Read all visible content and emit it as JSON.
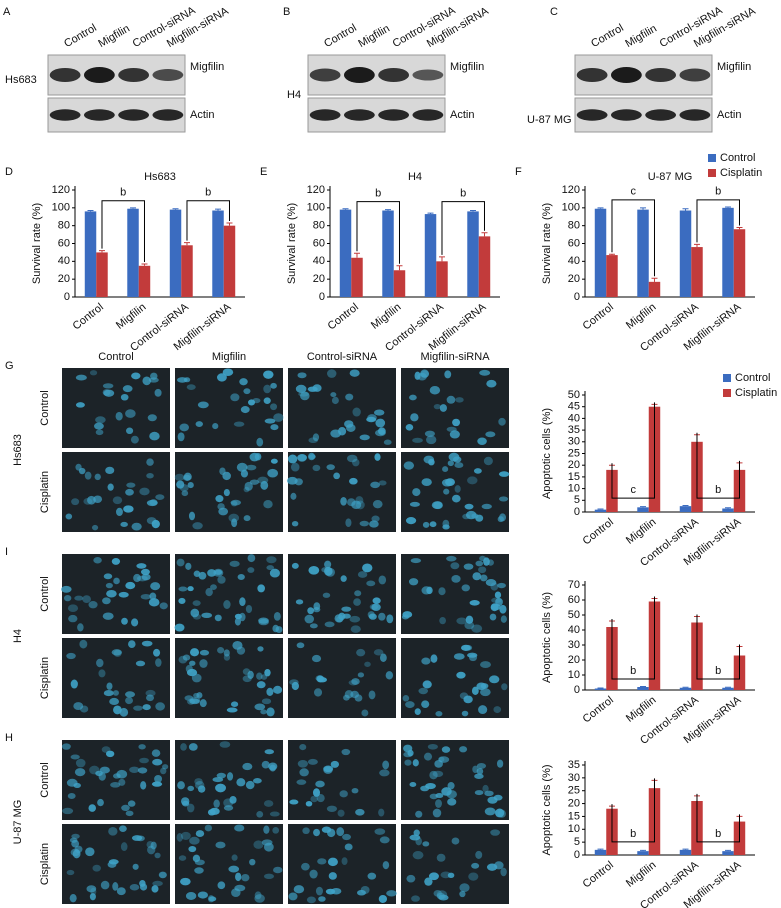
{
  "blots": [
    {
      "label": "A",
      "cell_line": "Hs683",
      "lanes": [
        "Control",
        "Migfilin",
        "Control-siRNA",
        "Migfilin-siRNA"
      ],
      "proteins": [
        "Migfilin",
        "Actin"
      ]
    },
    {
      "label": "B",
      "cell_line": "H4",
      "lanes": [
        "Control",
        "Migfilin",
        "Control-siRNA",
        "Migfilin-siRNA"
      ],
      "proteins": [
        "Migfilin",
        "Actin"
      ]
    },
    {
      "label": "C",
      "cell_line": "U-87 MG",
      "lanes": [
        "Control",
        "Migfilin",
        "Control-siRNA",
        "Migfilin-siRNA"
      ],
      "proteins": [
        "Migfilin",
        "Actin"
      ]
    }
  ],
  "micrographs": {
    "columns": [
      "Control",
      "Migfilin",
      "Control-siRNA",
      "Migfilin-siRNA"
    ],
    "rows": [
      "Control",
      "Cisplatin"
    ],
    "groups": [
      {
        "label": "G",
        "cell_line": "Hs683"
      },
      {
        "label": "I",
        "cell_line": "H4"
      },
      {
        "label": "H",
        "cell_line": "U-87 MG"
      }
    ]
  },
  "chart_data": [
    {
      "type": "bar",
      "panel": "D",
      "title": "Hs683",
      "y_label": "Survival rate (%)",
      "categories": [
        "Control",
        "Migfilin",
        "Control-siRNA",
        "Migfilin-siRNA"
      ],
      "series": [
        {
          "name": "Control",
          "color": "#3b6cc0",
          "values": [
            96,
            99,
            98,
            97
          ],
          "errors": [
            1,
            1,
            1,
            1.5
          ]
        },
        {
          "name": "Cisplatin",
          "color": "#c23b3b",
          "values": [
            50,
            35,
            58,
            80
          ],
          "errors": [
            2,
            2,
            3,
            3
          ]
        }
      ],
      "ylim": [
        0,
        120
      ],
      "yticks": [
        0,
        20,
        40,
        60,
        80,
        100,
        120
      ],
      "annotations": [
        "b",
        "b"
      ],
      "legend": false
    },
    {
      "type": "bar",
      "panel": "E",
      "title": "H4",
      "y_label": "Survival rate (%)",
      "categories": [
        "Control",
        "Migfilin",
        "Control-siRNA",
        "Migfilin-siRNA"
      ],
      "series": [
        {
          "name": "Control",
          "color": "#3b6cc0",
          "values": [
            98,
            97,
            93,
            96
          ],
          "errors": [
            1,
            1,
            1,
            1
          ]
        },
        {
          "name": "Cisplatin",
          "color": "#c23b3b",
          "values": [
            44,
            30,
            40,
            68
          ],
          "errors": [
            5,
            5,
            5,
            4
          ]
        }
      ],
      "ylim": [
        0,
        120
      ],
      "yticks": [
        0,
        20,
        40,
        60,
        80,
        100,
        120
      ],
      "annotations": [
        "b",
        "b"
      ],
      "legend": false
    },
    {
      "type": "bar",
      "panel": "F",
      "title": "U-87 MG",
      "y_label": "Survival rate (%)",
      "categories": [
        "Control",
        "Migfilin",
        "Control-siRNA",
        "Migfilin-siRNA"
      ],
      "series": [
        {
          "name": "Control",
          "color": "#3b6cc0",
          "values": [
            99,
            98,
            97,
            100
          ],
          "errors": [
            1,
            2,
            2,
            1
          ]
        },
        {
          "name": "Cisplatin",
          "color": "#c23b3b",
          "values": [
            47,
            17,
            56,
            76
          ],
          "errors": [
            1,
            4,
            3,
            2
          ]
        }
      ],
      "ylim": [
        0,
        120
      ],
      "yticks": [
        0,
        20,
        40,
        60,
        80,
        100,
        120
      ],
      "annotations": [
        "c",
        "b"
      ],
      "legend": true
    },
    {
      "type": "bar",
      "y_label": "Apoptotic cells (%)",
      "categories": [
        "Control",
        "Migfilin",
        "Control-siRNA",
        "Migfilin-siRNA"
      ],
      "series": [
        {
          "name": "Control",
          "color": "#3b6cc0",
          "values": [
            1,
            2,
            2.5,
            1.5
          ],
          "errors": [
            0.3,
            0.3,
            0.3,
            0.3
          ]
        },
        {
          "name": "Cisplatin",
          "color": "#c23b3b",
          "values": [
            18,
            45,
            30,
            18
          ],
          "errors": [
            2,
            1,
            3,
            3
          ]
        }
      ],
      "ylim": [
        0,
        50
      ],
      "yticks": [
        0,
        5,
        10,
        15,
        20,
        25,
        30,
        35,
        40,
        45,
        50
      ],
      "annotations": [
        "c",
        "b"
      ],
      "legend": true
    },
    {
      "type": "bar",
      "y_label": "Apoptotic cells (%)",
      "categories": [
        "Control",
        "Migfilin",
        "Control-siRNA",
        "Migfilin-siRNA"
      ],
      "series": [
        {
          "name": "Control",
          "color": "#3b6cc0",
          "values": [
            1,
            2,
            1.5,
            1.5
          ],
          "errors": [
            0.3,
            0.3,
            0.3,
            0.3
          ]
        },
        {
          "name": "Cisplatin",
          "color": "#c23b3b",
          "values": [
            42,
            59,
            45,
            23
          ],
          "errors": [
            4,
            2,
            4,
            6
          ]
        }
      ],
      "ylim": [
        0,
        70
      ],
      "yticks": [
        0,
        10,
        20,
        30,
        40,
        50,
        60,
        70
      ],
      "annotations": [
        "b",
        "b"
      ],
      "legend": false
    },
    {
      "type": "bar",
      "y_label": "Apoptotic cells (%)",
      "categories": [
        "Control",
        "Migfilin",
        "Control-siRNA",
        "Migfilin-siRNA"
      ],
      "series": [
        {
          "name": "Control",
          "color": "#3b6cc0",
          "values": [
            2,
            1.5,
            2,
            1.5
          ],
          "errors": [
            0.3,
            0.3,
            0.3,
            0.3
          ]
        },
        {
          "name": "Cisplatin",
          "color": "#c23b3b",
          "values": [
            18,
            26,
            21,
            13
          ],
          "errors": [
            1,
            3,
            2,
            2
          ]
        }
      ],
      "ylim": [
        0,
        35
      ],
      "yticks": [
        0,
        5,
        10,
        15,
        20,
        25,
        30,
        35
      ],
      "annotations": [
        "b",
        "b"
      ],
      "legend": false
    }
  ]
}
